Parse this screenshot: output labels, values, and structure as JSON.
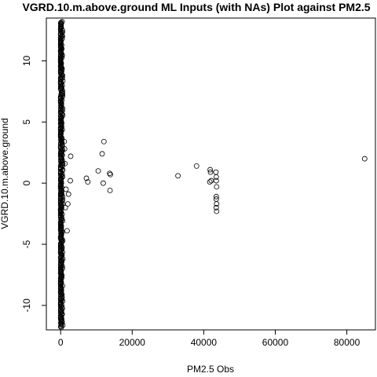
{
  "chart_data": {
    "type": "scatter",
    "title": "VGRD.10.m.above.ground ML Inputs (with NAs) Plot against PM2.5",
    "xlabel": "PM2.5 Obs",
    "ylabel": "VGRD.10.m.above.ground",
    "xlim": [
      -4000,
      88000
    ],
    "ylim": [
      -12,
      13.5
    ],
    "x_ticks": [
      0,
      20000,
      40000,
      60000,
      80000
    ],
    "y_ticks": [
      -10,
      -5,
      0,
      5,
      10
    ],
    "x_tick_labels": [
      "0",
      "20000",
      "40000",
      "60000",
      "80000"
    ],
    "y_tick_labels": [
      "-10",
      "-5",
      "0",
      "5",
      "10"
    ],
    "grid": false,
    "legend": "none",
    "marker": "open-circle",
    "dense_column": {
      "x_range": [
        0,
        1000
      ],
      "y_range": [
        -11.8,
        13.2
      ]
    },
    "series": [
      {
        "values": [
          [
            2800,
            2.2
          ],
          [
            2700,
            0.2
          ],
          [
            2200,
            -0.9
          ],
          [
            2000,
            -1.7
          ],
          [
            1800,
            -3.9
          ],
          [
            1500,
            -0.5
          ],
          [
            1200,
            1.6
          ],
          [
            1100,
            2.8
          ],
          [
            1000,
            3.4
          ],
          [
            1300,
            -2.0
          ],
          [
            7200,
            0.4
          ],
          [
            7600,
            0.1
          ],
          [
            10500,
            1.0
          ],
          [
            11600,
            2.4
          ],
          [
            12100,
            3.4
          ],
          [
            11900,
            0.0
          ],
          [
            13700,
            0.8
          ],
          [
            13900,
            0.7
          ],
          [
            13800,
            -0.6
          ],
          [
            32800,
            0.6
          ],
          [
            38000,
            1.4
          ],
          [
            41800,
            1.1
          ],
          [
            41900,
            0.9
          ],
          [
            42100,
            0.2
          ],
          [
            41700,
            0.1
          ],
          [
            43400,
            0.9
          ],
          [
            43500,
            0.5
          ],
          [
            43500,
            0.2
          ],
          [
            43600,
            -0.3
          ],
          [
            43500,
            -1.1
          ],
          [
            43500,
            -1.3
          ],
          [
            43600,
            -1.7
          ],
          [
            43500,
            -2.0
          ],
          [
            43600,
            -2.3
          ],
          [
            85000,
            2.0
          ]
        ]
      }
    ]
  }
}
